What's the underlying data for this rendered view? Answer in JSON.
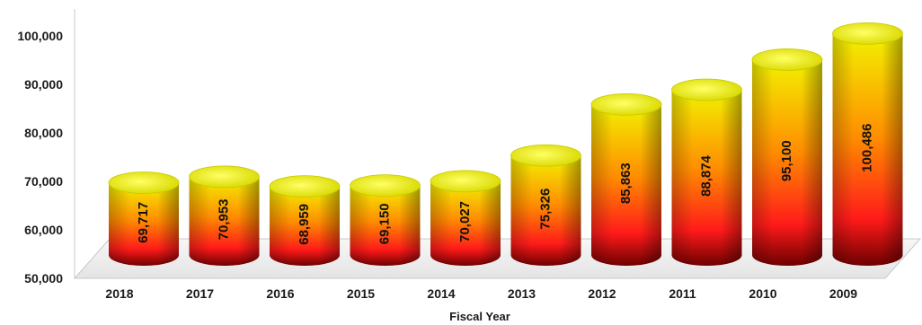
{
  "chart_data": {
    "type": "bar",
    "title": "",
    "xlabel": "Fiscal Year",
    "ylabel": "",
    "categories": [
      "2018",
      "2017",
      "2016",
      "2015",
      "2014",
      "2013",
      "2012",
      "2011",
      "2010",
      "2009"
    ],
    "values": [
      69717,
      70953,
      68959,
      69150,
      70027,
      75326,
      85863,
      88874,
      95100,
      100486
    ],
    "data_labels": [
      "69,717",
      "70,953",
      "68,959",
      "69,150",
      "70,027",
      "75,326",
      "85,863",
      "88,874",
      "95,100",
      "100,486"
    ],
    "ylim": [
      50000,
      100000
    ],
    "yticks": [
      50000,
      60000,
      70000,
      80000,
      90000,
      100000
    ],
    "ytick_labels": [
      "50,000",
      "60,000",
      "70,000",
      "80,000",
      "90,000",
      "100,000"
    ],
    "grid": false,
    "legend": "none",
    "bar_style": "3d-cylinder",
    "colors": {
      "top": "#f2f200",
      "mid": "#ff8c00",
      "low": "#ff1a1a",
      "base": "#6e0000",
      "floor": "#f0f0f0"
    }
  }
}
